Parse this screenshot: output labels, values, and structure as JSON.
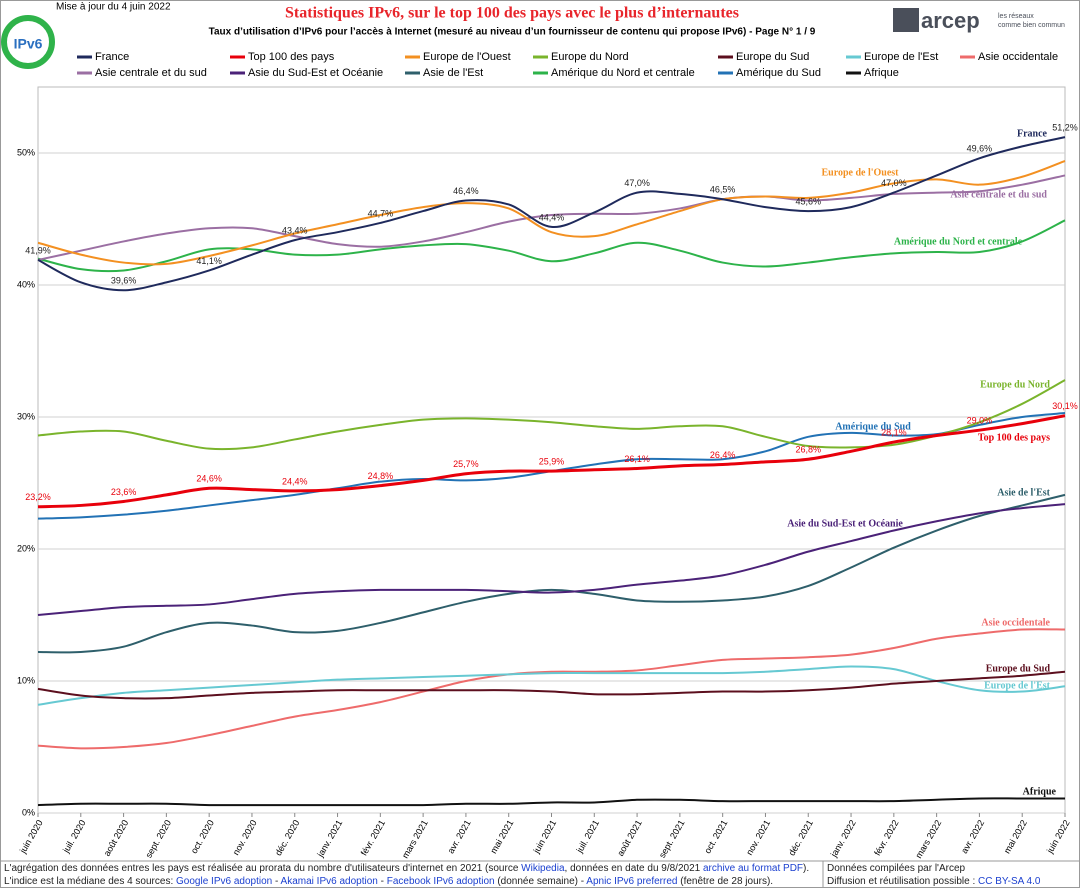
{
  "header": {
    "updated": "Mise à jour du 4 juin 2022",
    "logo": "IPv6",
    "brand": "arcep",
    "tagline": [
      "les réseaux",
      "comme bien commun"
    ]
  },
  "chart_data": {
    "type": "line",
    "title": "Statistiques IPv6, sur le top 100 des pays avec le plus d’internautes",
    "subtitle": "Taux d’utilisation d’IPv6 pour l’accès à Internet (mesuré au niveau d’un fournisseur de contenu qui propose IPv6) - Page N° 1 / 9",
    "categories": [
      "juin 2020",
      "juil. 2020",
      "août 2020",
      "sept. 2020",
      "oct. 2020",
      "nov. 2020",
      "déc. 2020",
      "janv. 2021",
      "févr. 2021",
      "mars 2021",
      "avr. 2021",
      "mai 2021",
      "juin 2021",
      "juil. 2021",
      "août 2021",
      "sept. 2021",
      "oct. 2021",
      "nov. 2021",
      "déc. 2021",
      "janv. 2022",
      "févr. 2022",
      "mars 2022",
      "avr. 2022",
      "mai 2022",
      "juin 2022"
    ],
    "ylim": [
      0,
      55
    ],
    "yticks": [
      {
        "value": 0,
        "label": "0%"
      },
      {
        "value": 10,
        "label": "10%"
      },
      {
        "value": 20,
        "label": "20%"
      },
      {
        "value": 30,
        "label": "30%"
      },
      {
        "value": 40,
        "label": "40%"
      },
      {
        "value": 50,
        "label": "50%"
      }
    ],
    "grid": true,
    "series": [
      {
        "name": "France",
        "color": "#1f2a5c",
        "values": [
          41.9,
          40.2,
          39.6,
          40.2,
          41.1,
          42.3,
          43.4,
          44.0,
          44.7,
          45.6,
          46.4,
          46.1,
          44.4,
          45.5,
          47.0,
          46.9,
          46.5,
          45.9,
          45.6,
          45.9,
          47.0,
          48.3,
          49.6,
          50.5,
          51.2
        ],
        "value_labels": [
          "41,9%",
          null,
          "39,6%",
          null,
          "41,1%",
          null,
          "43,4%",
          null,
          "44,7%",
          null,
          "46,4%",
          null,
          "44,4%",
          null,
          "47,0%",
          null,
          "46,5%",
          null,
          "45,6%",
          null,
          "47,0%",
          null,
          "49,6%",
          null,
          "51,2%"
        ]
      },
      {
        "name": "Top 100 des pays",
        "color": "#e8000b",
        "values": [
          23.2,
          23.3,
          23.6,
          24.1,
          24.6,
          24.5,
          24.4,
          24.5,
          24.8,
          25.2,
          25.7,
          25.9,
          25.9,
          26.0,
          26.1,
          26.3,
          26.4,
          26.6,
          26.8,
          27.4,
          28.1,
          28.6,
          29.0,
          29.5,
          30.1
        ],
        "value_labels": [
          "23,2%",
          null,
          "23,6%",
          null,
          "24,6%",
          null,
          "24,4%",
          null,
          "24,8%",
          null,
          "25,7%",
          null,
          "25,9%",
          null,
          "26,1%",
          null,
          "26,4%",
          null,
          "26,8%",
          null,
          "28,1%",
          null,
          "29,0%",
          null,
          "30,1%"
        ]
      },
      {
        "name": "Europe de l'Ouest",
        "color": "#f39021",
        "values": [
          43.2,
          42.3,
          41.7,
          41.6,
          42.2,
          43.0,
          43.9,
          44.6,
          45.3,
          45.9,
          46.2,
          45.8,
          44.0,
          43.7,
          44.6,
          45.6,
          46.5,
          46.7,
          46.6,
          47.0,
          47.7,
          48.0,
          47.6,
          48.2,
          49.4
        ]
      },
      {
        "name": "Europe du Nord",
        "color": "#7ab42c",
        "values": [
          28.6,
          28.9,
          28.9,
          28.2,
          27.6,
          27.7,
          28.3,
          28.9,
          29.4,
          29.8,
          29.9,
          29.8,
          29.6,
          29.3,
          29.1,
          29.3,
          29.3,
          28.5,
          27.8,
          27.7,
          27.9,
          28.6,
          29.6,
          31.0,
          32.8
        ]
      },
      {
        "name": "Europe du Sud",
        "color": "#5c0f1e",
        "values": [
          9.4,
          8.9,
          8.7,
          8.7,
          8.9,
          9.1,
          9.2,
          9.3,
          9.3,
          9.3,
          9.3,
          9.3,
          9.2,
          9.0,
          9.0,
          9.1,
          9.2,
          9.2,
          9.3,
          9.5,
          9.8,
          10.0,
          10.2,
          10.4,
          10.7
        ]
      },
      {
        "name": "Europe de l'Est",
        "color": "#66c9d2",
        "values": [
          8.2,
          8.7,
          9.1,
          9.3,
          9.5,
          9.7,
          9.9,
          10.1,
          10.2,
          10.3,
          10.4,
          10.5,
          10.6,
          10.6,
          10.6,
          10.6,
          10.6,
          10.7,
          10.9,
          11.1,
          10.9,
          10.0,
          9.3,
          9.2,
          9.6
        ]
      },
      {
        "name": "Asie occidentale",
        "color": "#ee6b6b",
        "values": [
          5.1,
          4.9,
          5.0,
          5.3,
          5.9,
          6.6,
          7.3,
          7.8,
          8.4,
          9.2,
          10.0,
          10.5,
          10.7,
          10.7,
          10.8,
          11.2,
          11.6,
          11.7,
          11.8,
          12.0,
          12.5,
          13.2,
          13.6,
          13.9,
          13.9
        ]
      },
      {
        "name": "Asie centrale et du sud",
        "color": "#9b6fa3",
        "values": [
          41.9,
          42.6,
          43.3,
          43.9,
          44.3,
          44.3,
          43.7,
          43.1,
          42.9,
          43.3,
          44.0,
          44.8,
          45.3,
          45.4,
          45.4,
          45.8,
          46.5,
          46.7,
          46.4,
          46.6,
          46.9,
          47.0,
          47.1,
          47.6,
          48.3
        ]
      },
      {
        "name": "Asie du Sud-Est et Océanie",
        "color": "#4b2278",
        "values": [
          15.0,
          15.3,
          15.6,
          15.7,
          15.8,
          16.2,
          16.6,
          16.8,
          16.9,
          16.9,
          16.9,
          16.8,
          16.7,
          16.9,
          17.3,
          17.6,
          18.0,
          18.8,
          19.8,
          20.6,
          21.4,
          22.1,
          22.7,
          23.1,
          23.4
        ]
      },
      {
        "name": "Asie de l'Est",
        "color": "#2e5f6b",
        "values": [
          12.2,
          12.2,
          12.6,
          13.7,
          14.4,
          14.2,
          13.7,
          13.8,
          14.4,
          15.2,
          16.0,
          16.6,
          16.9,
          16.6,
          16.1,
          16.0,
          16.1,
          16.4,
          17.2,
          18.6,
          20.1,
          21.4,
          22.5,
          23.3,
          24.1
        ]
      },
      {
        "name": "Amérique du Nord et centrale",
        "color": "#2db34a",
        "values": [
          42.0,
          41.2,
          41.1,
          41.8,
          42.7,
          42.7,
          42.3,
          42.3,
          42.7,
          43.0,
          43.1,
          42.6,
          41.8,
          42.4,
          43.2,
          42.6,
          41.7,
          41.4,
          41.7,
          42.1,
          42.4,
          42.5,
          42.5,
          43.3,
          44.9
        ]
      },
      {
        "name": "Amérique du Sud",
        "color": "#2272b5",
        "values": [
          22.3,
          22.4,
          22.6,
          22.9,
          23.3,
          23.7,
          24.1,
          24.6,
          25.1,
          25.3,
          25.2,
          25.4,
          25.9,
          26.4,
          26.8,
          26.8,
          26.8,
          27.4,
          28.5,
          28.8,
          28.6,
          28.7,
          29.4,
          30.0,
          30.3
        ]
      },
      {
        "name": "Afrique",
        "color": "#111111",
        "values": [
          0.6,
          0.7,
          0.7,
          0.7,
          0.6,
          0.6,
          0.6,
          0.6,
          0.6,
          0.6,
          0.7,
          0.7,
          0.8,
          0.8,
          1.0,
          1.0,
          0.9,
          0.9,
          0.9,
          0.9,
          0.9,
          1.0,
          1.1,
          1.1,
          1.1
        ]
      }
    ]
  },
  "footer": {
    "left": [
      [
        {
          "text": "L'agrégation des données entres les pays est réalisée au prorata du nombre d'utilisateurs d'internet en 2021 (source ",
          "link": false
        },
        {
          "text": "Wikipedia",
          "link": true
        },
        {
          "text": ", données en date du 9/8/2021 ",
          "link": false
        },
        {
          "text": "archive au format PDF",
          "link": true
        },
        {
          "text": ").",
          "link": false
        }
      ],
      [
        {
          "text": "L'indice est la médiane des 4 sources: ",
          "link": false
        },
        {
          "text": "Google IPv6 adoption",
          "link": true
        },
        {
          "text": " - ",
          "link": false
        },
        {
          "text": "Akamai IPv6 adoption",
          "link": true
        },
        {
          "text": " - ",
          "link": false
        },
        {
          "text": "Facebook IPv6 adoption",
          "link": true
        },
        {
          "text": " (donnée semaine) - ",
          "link": false
        },
        {
          "text": "Apnic IPv6 preferred",
          "link": true
        },
        {
          "text": " (fenêtre de 28 jours).",
          "link": false
        }
      ]
    ],
    "right": [
      [
        {
          "text": "Données compilées par l'Arcep",
          "link": false
        }
      ],
      [
        {
          "text": "Diffusion et réutilisation possible : ",
          "link": false
        },
        {
          "text": "CC BY-SA 4.0",
          "link": true
        }
      ]
    ]
  }
}
